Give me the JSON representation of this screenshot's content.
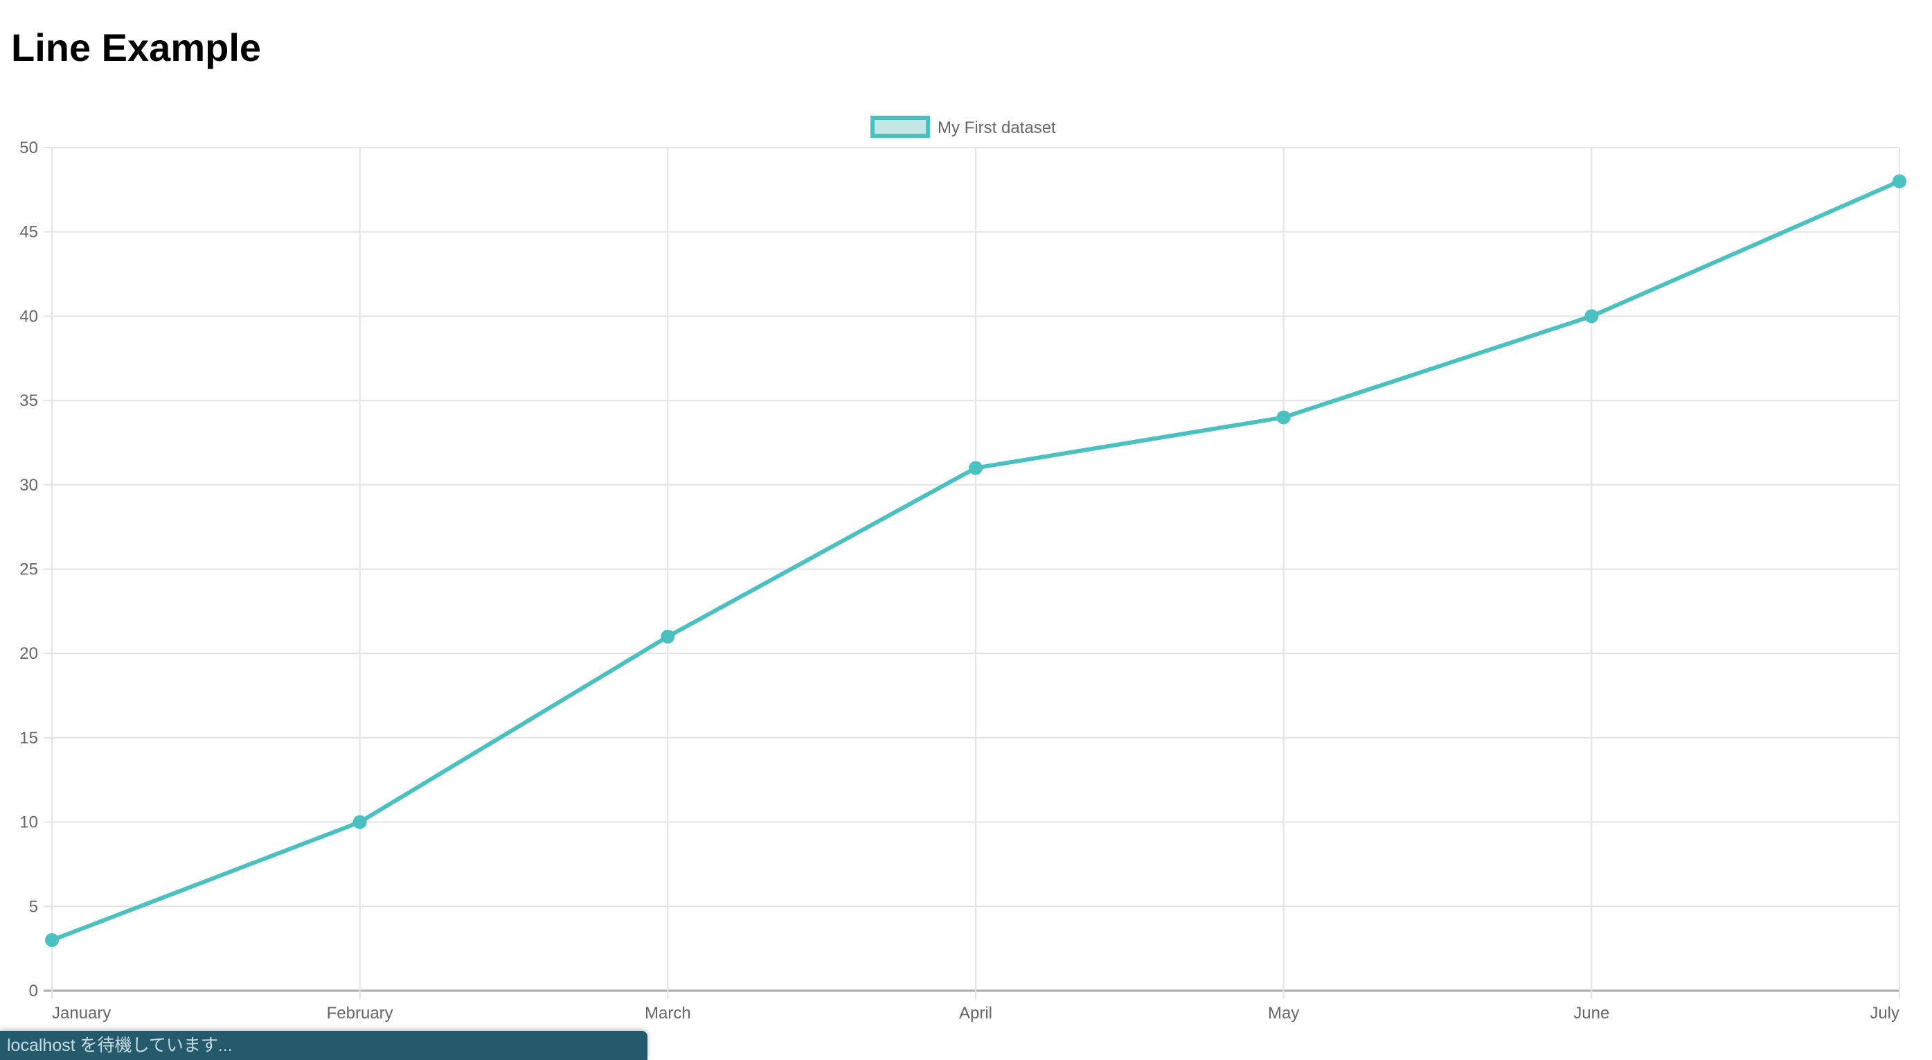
{
  "page": {
    "title": "Line Example"
  },
  "status_bar": {
    "text": "localhost を待機しています..."
  },
  "chart_data": {
    "type": "line",
    "title": "",
    "categories": [
      "January",
      "February",
      "March",
      "April",
      "May",
      "June",
      "July"
    ],
    "series": [
      {
        "name": "My First dataset",
        "values": [
          3,
          10,
          21,
          31,
          34,
          40,
          48
        ],
        "color": "#4bc0c0"
      }
    ],
    "ylim": [
      0,
      50
    ],
    "yticks": [
      0,
      5,
      10,
      15,
      20,
      25,
      30,
      35,
      40,
      45,
      50
    ],
    "grid": true,
    "legend": "top-center",
    "xlabel": "",
    "ylabel": ""
  }
}
